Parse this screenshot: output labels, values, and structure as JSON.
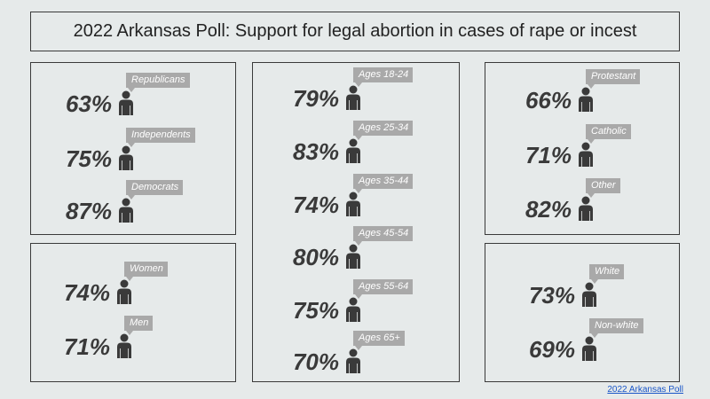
{
  "title": "2022 Arkansas Poll: Support for legal abortion in cases of rape or incest",
  "source_link": "2022 Arkansas Poll",
  "colors": {
    "icon": "#3a3a3a",
    "tag": "#a9a9a9",
    "link": "#1a56c8"
  },
  "chart_data": {
    "type": "table",
    "title": "2022 Arkansas Poll: Support for legal abortion in cases of rape or incest",
    "groups": [
      {
        "group": "party",
        "categories": [
          "Republicans",
          "Independents",
          "Democrats"
        ],
        "values": [
          63,
          75,
          87
        ],
        "labels": [
          "63%",
          "75%",
          "87%"
        ]
      },
      {
        "group": "gender",
        "categories": [
          "Women",
          "Men"
        ],
        "values": [
          74,
          71
        ],
        "labels": [
          "74%",
          "71%"
        ]
      },
      {
        "group": "age",
        "categories": [
          "Ages 18-24",
          "Ages 25-34",
          "Ages 35-44",
          "Ages 45-54",
          "Ages 55-64",
          "Ages 65+"
        ],
        "values": [
          79,
          83,
          74,
          80,
          75,
          70
        ],
        "labels": [
          "79%",
          "83%",
          "74%",
          "80%",
          "75%",
          "70%"
        ]
      },
      {
        "group": "religion",
        "categories": [
          "Protestant",
          "Catholic",
          "Other"
        ],
        "values": [
          66,
          71,
          82
        ],
        "labels": [
          "66%",
          "71%",
          "82%"
        ]
      },
      {
        "group": "race",
        "categories": [
          "White",
          "Non-white"
        ],
        "values": [
          73,
          69
        ],
        "labels": [
          "73%",
          "69%"
        ]
      }
    ]
  }
}
